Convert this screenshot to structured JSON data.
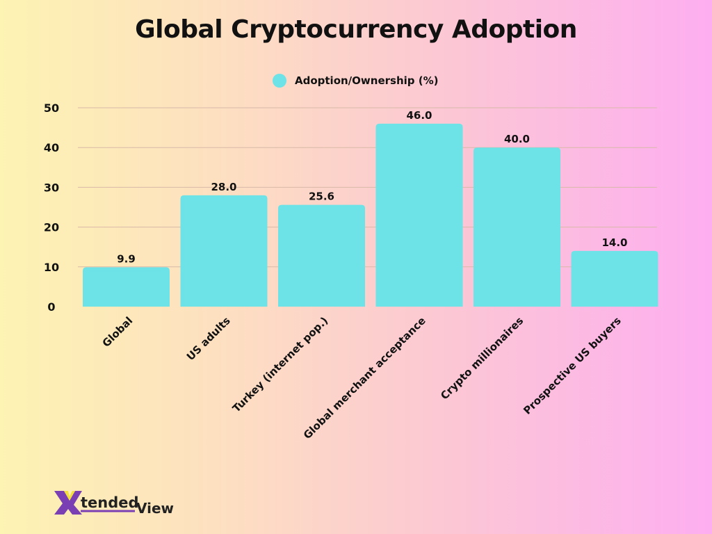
{
  "chart_data": {
    "type": "bar",
    "title": "Global Cryptocurrency Adoption",
    "categories": [
      "Global",
      "US adults",
      "Turkey (internet pop.)",
      "Global merchant acceptance",
      "Crypto millionaires",
      "Prospective US buyers"
    ],
    "series": [
      {
        "name": "Adoption/Ownership (%)",
        "values": [
          9.9,
          28.0,
          25.6,
          46.0,
          40.0,
          14.0
        ],
        "color": "#6de3e8"
      }
    ],
    "data_labels": [
      "9.9",
      "28.0",
      "25.6",
      "46.0",
      "40.0",
      "14.0"
    ],
    "ylim": [
      0,
      50
    ],
    "yticks": [
      0,
      10,
      20,
      30,
      40,
      50
    ],
    "grid": true,
    "legend": "top-center",
    "xlabel": "",
    "ylabel": ""
  },
  "logo": {
    "text_1": "X",
    "text_2": "tended",
    "text_3": "View",
    "colors": {
      "purple": "#7b3fb4",
      "yellow": "#f2e13a"
    }
  }
}
